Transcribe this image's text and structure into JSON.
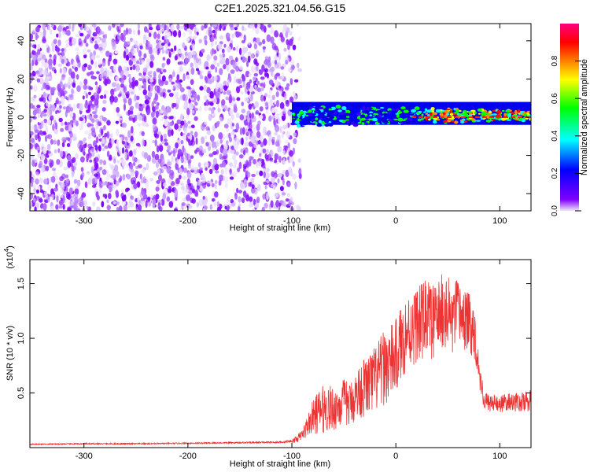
{
  "title": "C2E1.2025.321.04.56.G15",
  "chart_data": [
    {
      "type": "heatmap",
      "name": "spectrogram",
      "xlabel": "Height of straight line (km)",
      "ylabel": "Frequency (Hz)",
      "xlim": [
        -352,
        130
      ],
      "ylim": [
        -49,
        49
      ],
      "xticks": [
        -300,
        -200,
        -100,
        0,
        100
      ],
      "xtick_labels": [
        "-300",
        "-200",
        "-100",
        "0",
        "100"
      ],
      "yticks": [
        -40,
        -20,
        0,
        20,
        40
      ],
      "ytick_labels": [
        "-40",
        "-20",
        "0",
        "20",
        "40"
      ],
      "noise_region_x": [
        -352,
        -90
      ],
      "signal_region_x": [
        -100,
        130
      ],
      "signal_band_hz": [
        -4,
        8
      ],
      "colorbar": {
        "label": "Normalized spectral amplitude",
        "range": [
          0,
          1
        ],
        "ticks": [
          0.0,
          0.2,
          0.4,
          0.6,
          0.8
        ],
        "tick_labels": [
          "0.0",
          "0.2",
          "0.4",
          "0.6",
          "0.8"
        ],
        "colors": [
          "#f0e8f8",
          "#8000ff",
          "#0000ff",
          "#00ffff",
          "#00ff00",
          "#ffff00",
          "#ff8000",
          "#ff0000",
          "#ff0080"
        ]
      }
    },
    {
      "type": "line",
      "name": "snr",
      "xlabel": "Height of straight line (km)",
      "ylabel": "SNR (10 * v/v)",
      "exponent_label": "(x10",
      "exponent_sup": "4",
      "exponent_close": ")",
      "color": "#ee3333",
      "xlim": [
        -352,
        130
      ],
      "ylim": [
        0,
        17200
      ],
      "xticks": [
        -300,
        -200,
        -100,
        0,
        100
      ],
      "xtick_labels": [
        "-300",
        "-200",
        "-100",
        "0",
        "100"
      ],
      "yticks": [
        5000,
        10000,
        15000
      ],
      "ytick_labels": [
        "0.5",
        "1.0",
        "1.5"
      ],
      "x": [
        -352,
        -300,
        -250,
        -200,
        -150,
        -110,
        -100,
        -95,
        -90,
        -85,
        -80,
        -75,
        -70,
        -65,
        -60,
        -55,
        -50,
        -45,
        -40,
        -35,
        -30,
        -25,
        -20,
        -15,
        -10,
        -5,
        0,
        5,
        10,
        15,
        20,
        25,
        30,
        35,
        40,
        45,
        50,
        55,
        60,
        65,
        70,
        75,
        78,
        80,
        85,
        90,
        100,
        110,
        120,
        130
      ],
      "y": [
        300,
        350,
        350,
        400,
        450,
        500,
        600,
        800,
        1200,
        2000,
        2800,
        3200,
        3500,
        3600,
        3500,
        3800,
        4200,
        3900,
        4500,
        5200,
        5500,
        5800,
        6200,
        6800,
        7500,
        7800,
        8300,
        9500,
        10500,
        10800,
        11300,
        11500,
        12200,
        11400,
        11800,
        12500,
        12200,
        11600,
        12400,
        11800,
        11400,
        10800,
        9000,
        7000,
        4300,
        4100,
        4000,
        4200,
        4100,
        4300
      ],
      "noise_amp": [
        50,
        60,
        60,
        60,
        70,
        80,
        150,
        300,
        500,
        1000,
        1500,
        2000,
        2200,
        2200,
        2000,
        2000,
        2200,
        2000,
        2200,
        2500,
        2800,
        3000,
        3200,
        3300,
        3500,
        3500,
        3500,
        3500,
        3500,
        3500,
        3500,
        3500,
        3500,
        3500,
        3500,
        3500,
        3500,
        3500,
        3200,
        3000,
        2800,
        2500,
        2000,
        1500,
        800,
        800,
        800,
        800,
        900,
        1000
      ]
    }
  ]
}
